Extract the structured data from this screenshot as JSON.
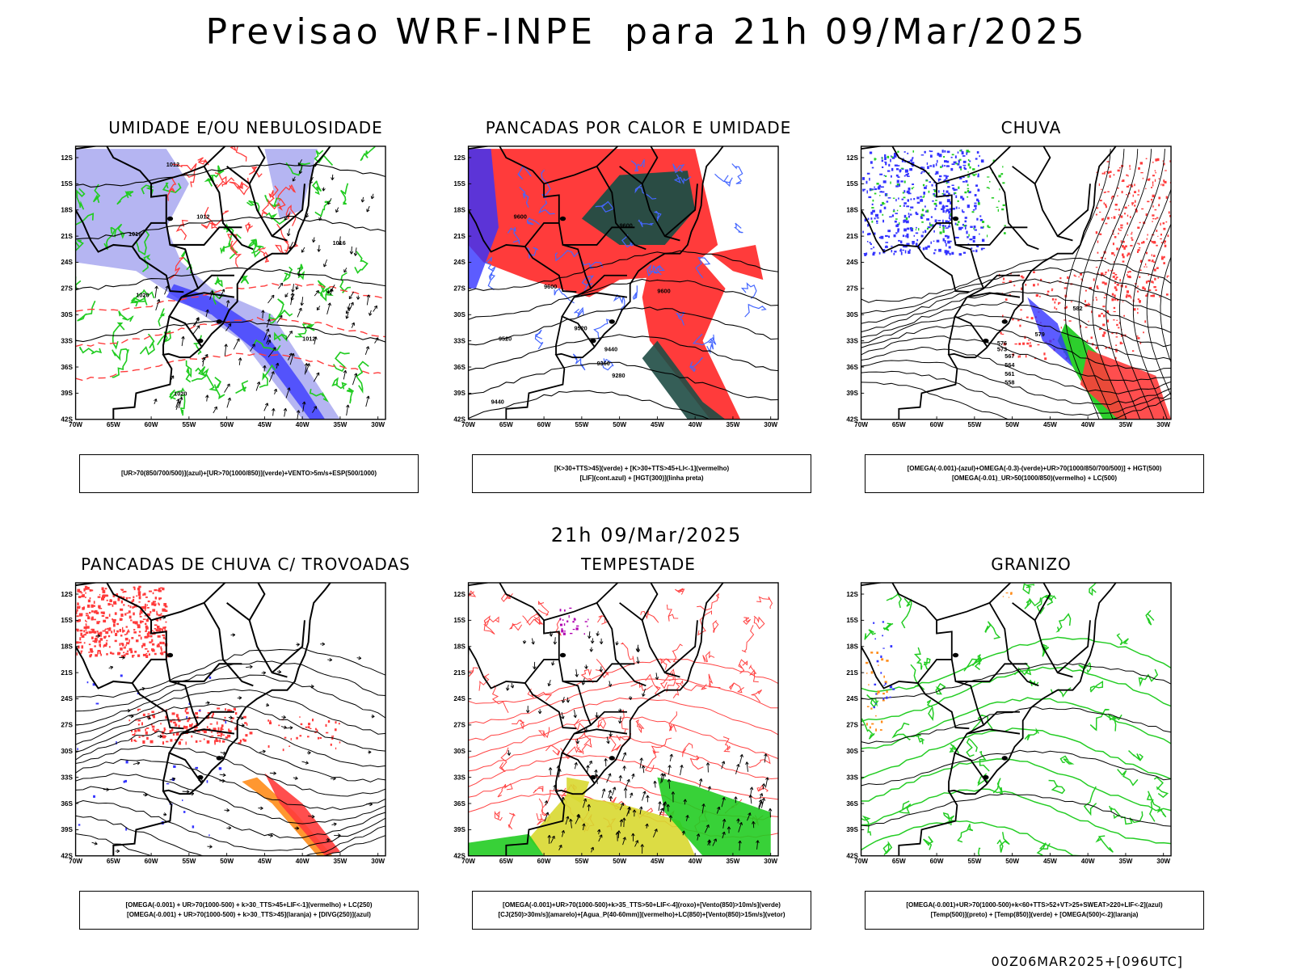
{
  "title": "Previsao WRF-INPE  para 21h 09/Mar/2025",
  "subtitle": "21h 09/Mar/2025",
  "footer": "00Z06MAR2025+[096UTC]",
  "axes": {
    "lat_ticks": [
      "12S",
      "15S",
      "18S",
      "21S",
      "24S",
      "27S",
      "30S",
      "33S",
      "36S",
      "39S",
      "42S"
    ],
    "lon_ticks": [
      "70W",
      "65W",
      "60W",
      "55W",
      "50W",
      "45W",
      "40W",
      "35W",
      "30W"
    ]
  },
  "colors": {
    "red": "#ff3b3b",
    "green": "#22cc22",
    "blue": "#3333ff",
    "lavender": "#a8a8f0",
    "darkteal": "#1f4d45",
    "yellow": "#d8d830",
    "orange": "#ff8c1a",
    "purple": "#b000b0"
  },
  "panels": [
    {
      "title": "UMIDADE E/OU NEBULOSIDADE",
      "legend": [
        "[UR>70(850/700/500)](azul)+[UR>70(1000/850)](verde)+VENTO>5m/s+ESP(500/1000)"
      ],
      "style": "umidade"
    },
    {
      "title": "PANCADAS POR CALOR E UMIDADE",
      "legend": [
        "[K>30+TTS>45](verde) + [K>30+TTS>45+LI<-1](vermelho)",
        "[LIF](cont.azul) + [HGT(300)](linha preta)"
      ],
      "style": "pancadas"
    },
    {
      "title": "CHUVA",
      "legend": [
        "[OMEGA(-0.001)-(azul)+OMEGA(-0.3)-(verde)+UR>70(1000/850/700/500)] + HGT(500)",
        "[OMEGA(-0.01)_UR>50(1000/850)(vermelho) + LC(500)"
      ],
      "style": "chuva"
    },
    {
      "title": "PANCADAS DE CHUVA C/ TROVOADAS",
      "legend": [
        "[OMEGA(-0.001) + UR>70(1000-500) + k>30_TTS>45+LIF<-1](vermelho) + LC(250)",
        "[OMEGA(-0.001) + UR>70(1000-500) + k>30_TTS>45](laranja) + [DIVG(250)](azul)"
      ],
      "style": "trovoadas"
    },
    {
      "title": "TEMPESTADE",
      "legend": [
        "[OMEGA(-0.001)+UR>70(1000-500)+k>35_TTS>50+LIF<-4](roxo)+[Vento(850)>10m/s](verde)",
        "[CJ(250)>30m/s](amarelo)+[Agua_P(40-60mm)](vermelho)+LC(850)+[Vento(850)>15m/s](vetor)"
      ],
      "style": "tempestade"
    },
    {
      "title": "GRANIZO",
      "legend": [
        "[OMEGA(-0.001)+UR>70(1000-500)+k<60+TTS>52+VT>25+SWEAT>220+LIF<-2](azul)",
        "[Temp(500)](preto) + [Temp(850)](verde) + [OMEGA(500)<-2](laranja)"
      ],
      "style": "granizo"
    }
  ]
}
